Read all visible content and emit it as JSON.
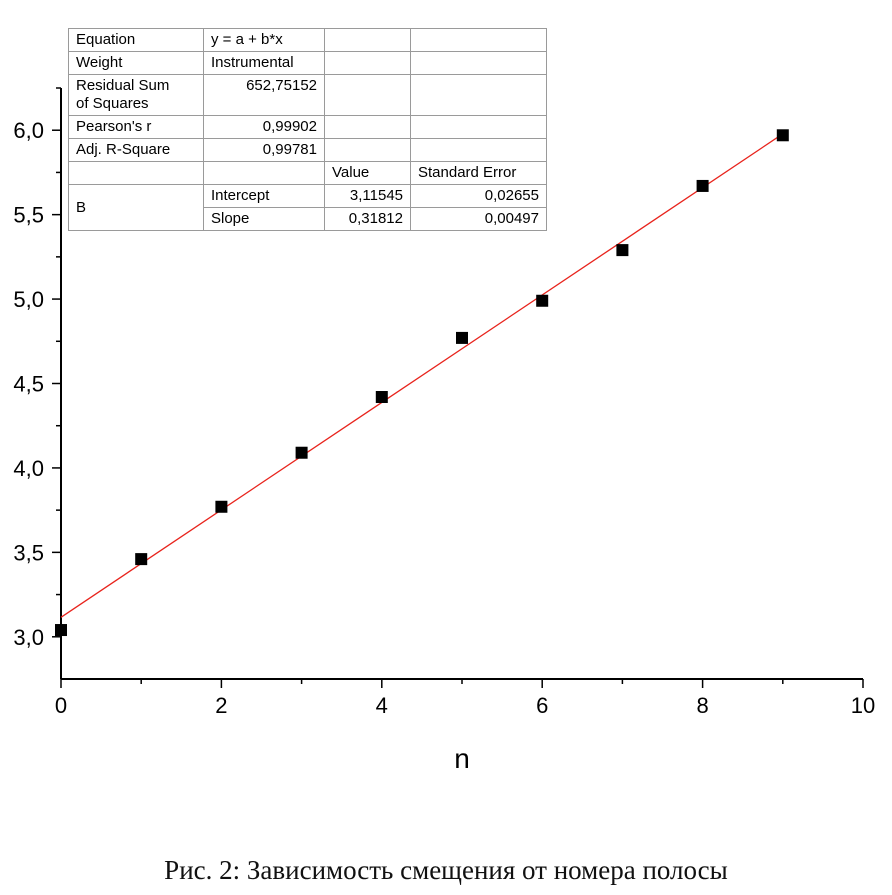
{
  "chart_data": {
    "type": "scatter",
    "xlabel": "n",
    "ylabel": "",
    "xlim": [
      0,
      10
    ],
    "ylim": [
      2.75,
      6.25
    ],
    "x_ticks": [
      "0",
      "2",
      "4",
      "6",
      "8",
      "10"
    ],
    "y_ticks": [
      "3,0",
      "3,5",
      "4,0",
      "4,5",
      "5,0",
      "5,5",
      "6,0"
    ],
    "points": [
      {
        "x": 0,
        "y": 3.04
      },
      {
        "x": 1,
        "y": 3.46
      },
      {
        "x": 2,
        "y": 3.77
      },
      {
        "x": 3,
        "y": 4.09
      },
      {
        "x": 4,
        "y": 4.42
      },
      {
        "x": 5,
        "y": 4.77
      },
      {
        "x": 6,
        "y": 4.99
      },
      {
        "x": 7,
        "y": 5.29
      },
      {
        "x": 8,
        "y": 5.67
      },
      {
        "x": 9,
        "y": 5.97
      }
    ],
    "fit": {
      "intercept": 3.11545,
      "slope": 0.31812,
      "x_range": [
        0,
        9
      ]
    },
    "colors": {
      "points": "#000000",
      "fit_line": "#e8231c"
    },
    "fit_table": {
      "equation_label": "Equation",
      "equation": "y = a + b*x",
      "weight_label": "Weight",
      "weight": "Instrumental",
      "rss_label_1": "Residual Sum",
      "rss_label_2": "of Squares",
      "rss": "652,75152",
      "pearson_label": "Pearson's r",
      "pearson": "0,99902",
      "adjr_label": "Adj. R-Square",
      "adjr": "0,99781",
      "value_header": "Value",
      "stderr_header": "Standard Error",
      "group": "B",
      "intercept_label": "Intercept",
      "intercept_value": "3,11545",
      "intercept_error": "0,02655",
      "slope_label": "Slope",
      "slope_value": "0,31812",
      "slope_error": "0,00497"
    }
  },
  "caption": "Рис. 2: Зависимость смещения от номера полосы"
}
